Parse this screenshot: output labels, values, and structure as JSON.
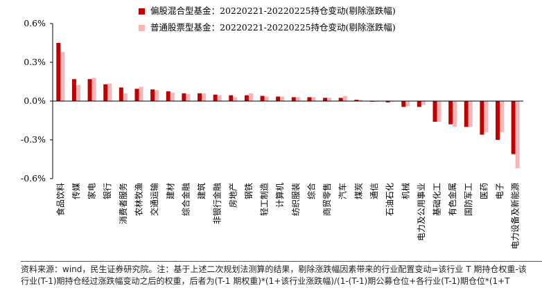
{
  "colors": {
    "series1": "#c00000",
    "series2": "#f4b6b6"
  },
  "source_note": "资料来源：wind，民生证券研究院。注：基于上述二次规划法测算的结果，剔除涨跌幅因素带来的行业配置变动=该行业 T 期持仓权重-该\n行业(T-1)期持仓经过涨跌幅变动之后的权重，后者为(T-1 期权重)*(1+该行业涨跌幅)/(1-(T-1)期公募仓位+各行业(T-1)期仓位*(1+T",
  "chart_data": {
    "type": "bar",
    "title": "",
    "xlabel": "",
    "ylabel": "",
    "ylim": [
      -0.6,
      0.6
    ],
    "yticks": [
      0.6,
      0.3,
      0.0,
      -0.3,
      -0.6
    ],
    "ytick_labels": [
      "0.6%",
      "0.3%",
      "0.0%",
      "-0.3%",
      "-0.6%"
    ],
    "legend_position": "top",
    "grid": false,
    "categories": [
      "食品饮料",
      "传媒",
      "家电",
      "银行",
      "消费者服务",
      "农林牧渔",
      "交通运输",
      "建材",
      "综合金融",
      "建筑",
      "非银行金融",
      "房地产",
      "钢铁",
      "轻工制造",
      "计算机",
      "纺织服装",
      "综合",
      "商贸零售",
      "汽车",
      "煤炭",
      "通信",
      "石油石化",
      "机械",
      "电力及公用事业",
      "基础化工",
      "有色金属",
      "国防军工",
      "医药",
      "电子",
      "电力设备及新能源"
    ],
    "series": [
      {
        "name": "偏股混合型基金：20220221-20220225持仓变动(剔除涨跌幅)",
        "values": [
          0.45,
          0.17,
          0.17,
          0.13,
          0.105,
          0.095,
          0.09,
          0.075,
          0.06,
          0.06,
          0.05,
          0.045,
          0.045,
          0.04,
          0.035,
          0.03,
          0.03,
          0.025,
          0.025,
          0.01,
          -0.005,
          -0.01,
          -0.045,
          -0.045,
          -0.16,
          -0.18,
          -0.2,
          -0.26,
          -0.3,
          -0.41
        ]
      },
      {
        "name": "普通股票型基金：20220221-20220225持仓变动(剔除涨跌幅)",
        "values": [
          0.38,
          0.125,
          0.18,
          0.135,
          0.06,
          0.11,
          0.085,
          0.065,
          0.055,
          0.06,
          0.045,
          0.03,
          0.06,
          0.035,
          0.035,
          0.03,
          0.03,
          0.025,
          0.04,
          0.01,
          -0.005,
          -0.005,
          -0.04,
          -0.03,
          -0.16,
          -0.2,
          -0.2,
          -0.24,
          -0.24,
          -0.52
        ]
      }
    ]
  }
}
